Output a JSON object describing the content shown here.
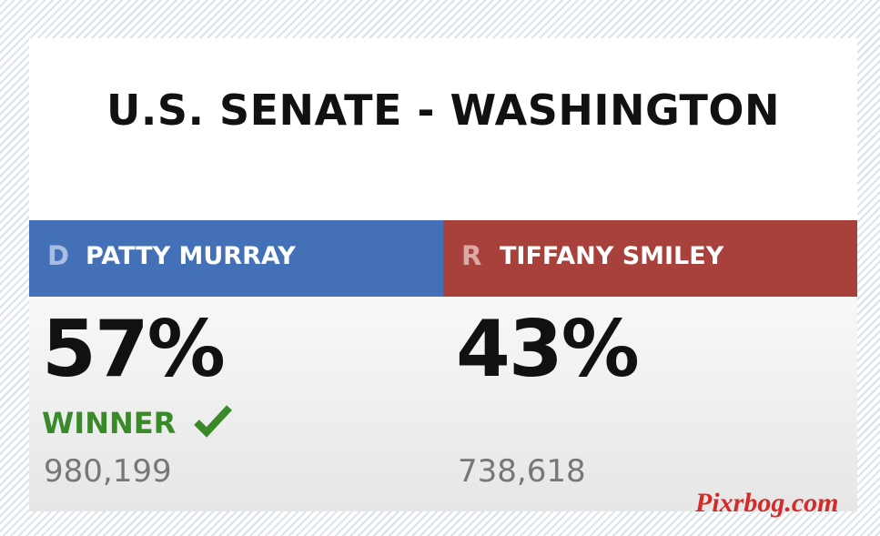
{
  "title": "U.S. SENATE - WASHINGTON",
  "candidates": [
    {
      "party": "D",
      "name": "PATTY MURRAY",
      "percent": "57%",
      "status": "WINNER",
      "votes": "980,199"
    },
    {
      "party": "R",
      "name": "TIFFANY SMILEY",
      "percent": "43%",
      "votes": "738,618"
    }
  ],
  "watermark": "Pixrbog.com"
}
